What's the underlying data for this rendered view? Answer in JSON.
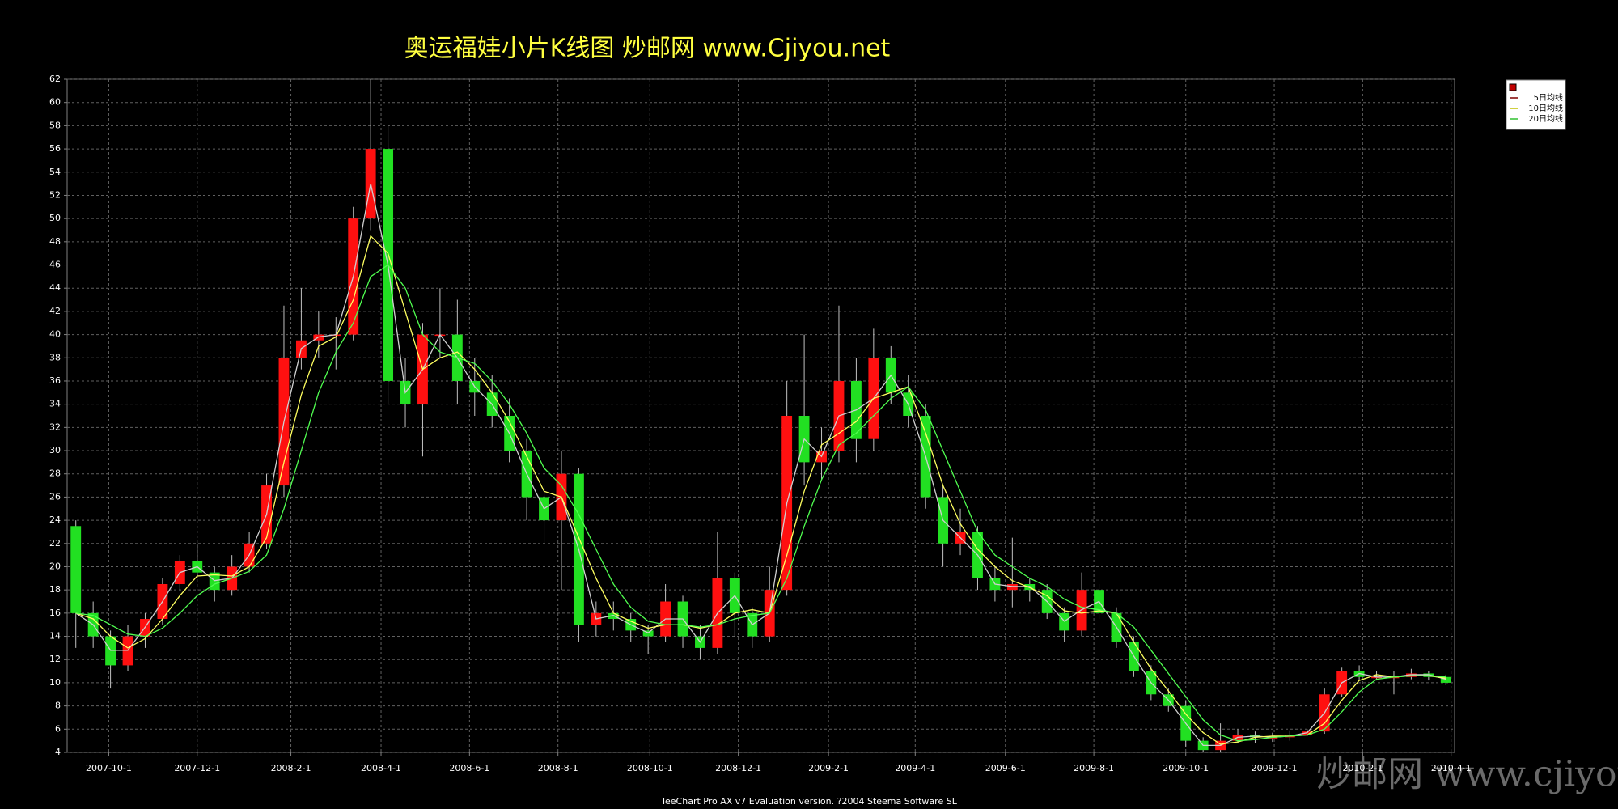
{
  "chart_data": {
    "type": "candlestick",
    "title": "奥运福娃小片K线图  炒邮网 www.Cjiyou.net",
    "footer": "TeeChart Pro AX v7 Evaluation version. ?2004 Steema Software SL",
    "watermark": "炒邮网 www.cjiyou.net",
    "up_color": "#ff1010",
    "down_color": "#22e022",
    "grid": true,
    "legend": "top-right",
    "xlim": [
      0,
      80
    ],
    "xticks": [
      {
        "value": 2.4,
        "label": "2007-10-1"
      },
      {
        "value": 7.5,
        "label": "2007-12-1"
      },
      {
        "value": 12.9,
        "label": "2008-2-1"
      },
      {
        "value": 18.1,
        "label": "2008-4-1"
      },
      {
        "value": 23.2,
        "label": "2008-6-1"
      },
      {
        "value": 28.3,
        "label": "2008-8-1"
      },
      {
        "value": 33.6,
        "label": "2008-10-1"
      },
      {
        "value": 38.7,
        "label": "2008-12-1"
      },
      {
        "value": 43.9,
        "label": "2009-2-1"
      },
      {
        "value": 48.9,
        "label": "2009-4-1"
      },
      {
        "value": 54.1,
        "label": "2009-6-1"
      },
      {
        "value": 59.2,
        "label": "2009-8-1"
      },
      {
        "value": 64.5,
        "label": "2009-10-1"
      },
      {
        "value": 69.6,
        "label": "2009-12-1"
      },
      {
        "value": 74.7,
        "label": "2010-2-1"
      },
      {
        "value": 79.8,
        "label": "2010-4-1"
      }
    ],
    "ylim": [
      4,
      62
    ],
    "yticks": [
      4,
      6,
      8,
      10,
      12,
      14,
      16,
      18,
      20,
      22,
      24,
      26,
      28,
      30,
      32,
      34,
      36,
      38,
      40,
      42,
      44,
      46,
      48,
      50,
      52,
      54,
      56,
      58,
      60,
      62
    ],
    "open": [
      23.5,
      16,
      14,
      11.5,
      14,
      15.5,
      18.5,
      20.5,
      19.5,
      18,
      20,
      22,
      27,
      38,
      39.5,
      40,
      40,
      50,
      56,
      36,
      34,
      40,
      40,
      36,
      35,
      33,
      30,
      26,
      24,
      28,
      15,
      16,
      15.5,
      14.5,
      14,
      17,
      14,
      13,
      19,
      16,
      14,
      18,
      33,
      29,
      30,
      36,
      31,
      38,
      35,
      33,
      26,
      22,
      23,
      19,
      18,
      18.5,
      18,
      16,
      14.5,
      18,
      16,
      13.5,
      11,
      9,
      8,
      5,
      4.2,
      5,
      5.5,
      5.3,
      5.3,
      5.5,
      5.8,
      9,
      11,
      10.5,
      10.5,
      10.5,
      10.8,
      10.5
    ],
    "high": [
      24,
      17,
      14.5,
      15,
      16,
      19,
      21,
      22,
      20,
      21,
      23,
      28,
      42.5,
      44,
      42,
      41.5,
      51,
      62,
      58,
      38,
      41,
      44,
      43,
      38,
      36.5,
      34.5,
      31,
      27,
      30,
      28.5,
      17,
      17,
      16,
      15,
      18.5,
      17.5,
      15,
      23,
      19.5,
      16.5,
      20,
      36,
      40,
      32,
      42.5,
      38,
      40.5,
      39,
      36.5,
      34,
      27,
      25,
      23.5,
      20,
      22.5,
      19,
      18.5,
      16.5,
      19.5,
      18.5,
      16.5,
      14,
      11.5,
      9.5,
      8.5,
      5.3,
      6.5,
      6,
      5.8,
      5.7,
      5.9,
      6,
      9.5,
      11.3,
      11.5,
      11,
      11,
      11.2,
      11,
      10.7
    ],
    "low": [
      13,
      13,
      9.5,
      11,
      13,
      15,
      18,
      19,
      17,
      17.5,
      19.5,
      21.5,
      26,
      37,
      38,
      37,
      39.5,
      49,
      34,
      32,
      29.5,
      38,
      34,
      33,
      32,
      29,
      24,
      22,
      18,
      13.5,
      14,
      14.5,
      13.5,
      12.5,
      13.5,
      13,
      12,
      12.5,
      14,
      13,
      13.5,
      17.5,
      27,
      27.5,
      29,
      29,
      30,
      34,
      32,
      25,
      20,
      21,
      18,
      17,
      16.5,
      17,
      15.5,
      13.5,
      14,
      15.5,
      13,
      10.5,
      8.5,
      7.5,
      4.5,
      4,
      4,
      4.8,
      4.8,
      4.9,
      5,
      5.4,
      5.6,
      8.8,
      10.2,
      10.2,
      9,
      10.3,
      10.2,
      9.8
    ],
    "close": [
      16,
      14,
      11.5,
      14,
      15.5,
      18.5,
      20.5,
      19.5,
      18,
      20,
      22,
      27,
      38,
      39.5,
      40,
      40,
      50,
      56,
      36,
      34,
      40,
      40,
      36,
      35,
      33,
      30,
      26,
      24,
      28,
      15,
      16,
      15.5,
      14.5,
      14,
      17,
      14,
      13,
      19,
      16,
      14,
      18,
      33,
      29,
      30,
      36,
      31,
      38,
      35,
      33,
      26,
      22,
      23,
      19,
      18,
      18.5,
      18,
      16,
      14.5,
      18,
      16,
      13.5,
      11,
      9,
      8,
      5,
      4.2,
      5,
      5.5,
      5.3,
      5.3,
      5.5,
      5.8,
      9,
      11,
      10.5,
      10.5,
      10.5,
      10.8,
      10.5,
      10
    ],
    "series": [
      {
        "name": "5日均线",
        "color": "#d0d0d0",
        "values": [
          16,
          15,
          12.8,
          12.8,
          14.8,
          17,
          19.5,
          20,
          18.8,
          19,
          21,
          24.5,
          32.5,
          38.8,
          39.8,
          40,
          45,
          53,
          46,
          35,
          37,
          40,
          38,
          35.5,
          34,
          31.5,
          28,
          25,
          26,
          21.5,
          15.5,
          15.8,
          15,
          14.3,
          15.5,
          15.5,
          13.5,
          16,
          17.5,
          15,
          16,
          25.5,
          31,
          29.5,
          33,
          33.5,
          34.5,
          36.5,
          34,
          29.5,
          24,
          22.5,
          21,
          18.5,
          18.3,
          18.3,
          17,
          15.3,
          16.3,
          17,
          14.8,
          12.3,
          10,
          8.5,
          6.5,
          4.6,
          4.6,
          5.3,
          5.4,
          5.3,
          5.4,
          5.7,
          7.4,
          10,
          10.8,
          10.5,
          10.5,
          10.7,
          10.7,
          10.3
        ]
      },
      {
        "name": "10日均线",
        "color": "#ffff60",
        "values": [
          16,
          15.5,
          14,
          13,
          13.8,
          15.5,
          17.5,
          19.2,
          19.3,
          19.2,
          20,
          22.5,
          29,
          34.8,
          39,
          39.8,
          43,
          48.5,
          47,
          42,
          37,
          38,
          38.5,
          37,
          35,
          32.5,
          29.5,
          26.5,
          26,
          22.5,
          19,
          16,
          15.3,
          14.7,
          15,
          15,
          14.7,
          15,
          16,
          16.3,
          16,
          21,
          26.5,
          30.5,
          31.5,
          32.5,
          34.5,
          35,
          35.5,
          31.5,
          27,
          23.7,
          21.5,
          20,
          18.8,
          18.2,
          17.5,
          16.2,
          16,
          16.2,
          16,
          13.5,
          11.2,
          9.3,
          7.3,
          5.7,
          4.7,
          4.9,
          5.3,
          5.4,
          5.4,
          5.5,
          6.5,
          8.5,
          10.2,
          10.7,
          10.5,
          10.6,
          10.6,
          10.4
        ]
      },
      {
        "name": "20日均线",
        "color": "#50ff50",
        "values": [
          16,
          15.8,
          15,
          14.2,
          14,
          14.7,
          16,
          17.5,
          18.5,
          19,
          19.6,
          21,
          25,
          30,
          35,
          38.5,
          41,
          45,
          46,
          44,
          40,
          38.5,
          38,
          37.5,
          36,
          34,
          31.5,
          28.5,
          27,
          24.5,
          21.5,
          18.5,
          16.5,
          15.3,
          15,
          15,
          14.8,
          15,
          15.5,
          15.8,
          16,
          19,
          23.5,
          27.5,
          30.5,
          31.5,
          33,
          34.5,
          35.5,
          33.5,
          30,
          26.5,
          23,
          21,
          20,
          19,
          18.3,
          17.2,
          16.5,
          16.3,
          16,
          14.8,
          12.8,
          10.8,
          8.8,
          6.8,
          5.5,
          5,
          5.1,
          5.3,
          5.4,
          5.5,
          6,
          7.5,
          9.2,
          10.3,
          10.5,
          10.6,
          10.6,
          10.5
        ]
      }
    ]
  }
}
